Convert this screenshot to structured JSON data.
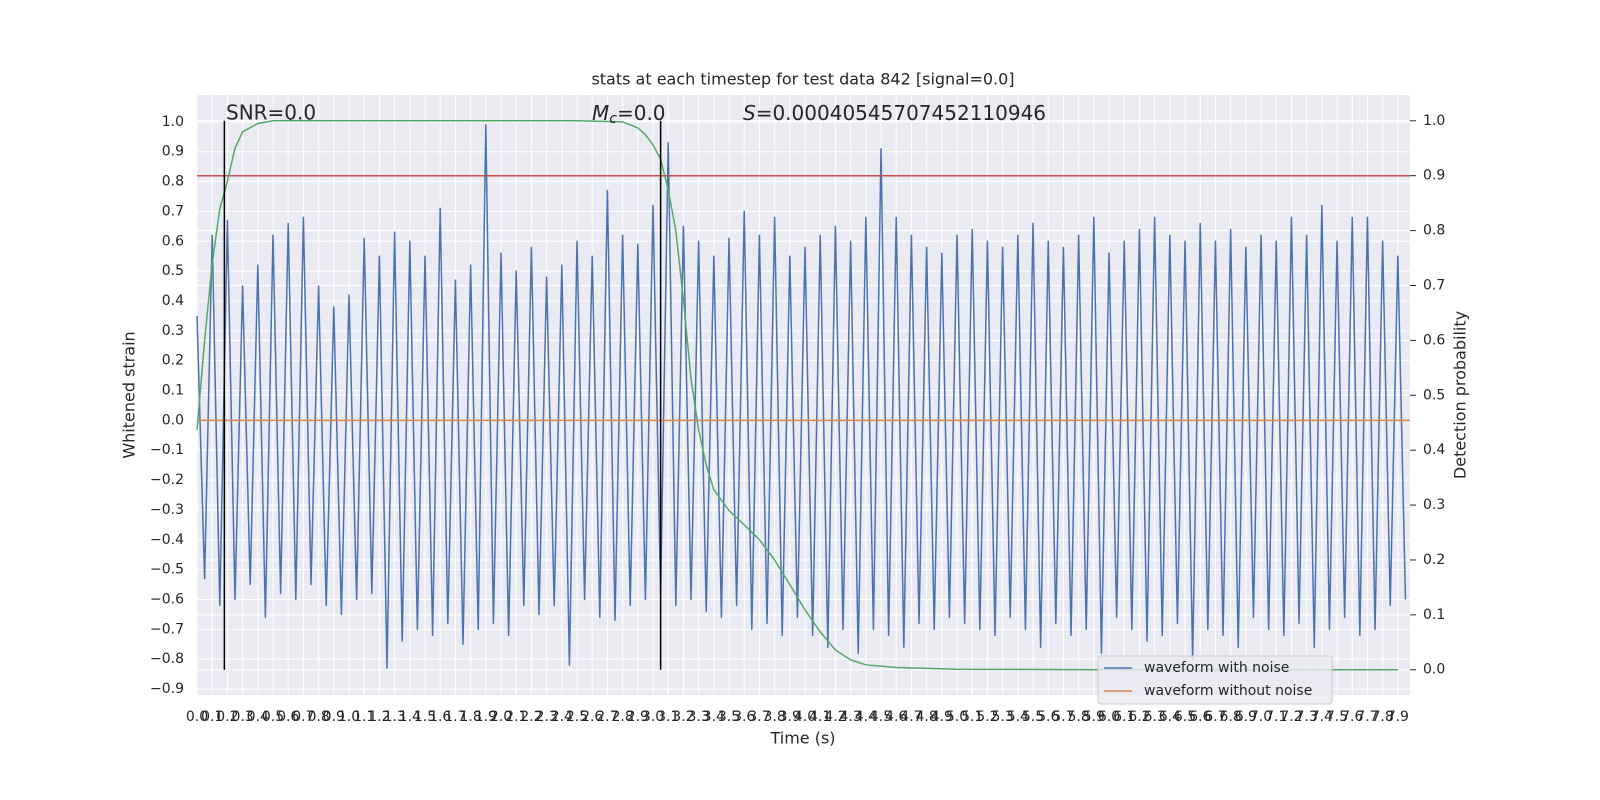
{
  "chart_data": {
    "type": "line",
    "title": "stats at each timestep for test data 842 [signal=0.0]",
    "xlabel": "Time (s)",
    "ylabel": "Whitened strain",
    "y2label": "Detection probability",
    "annotations": [
      "SNR=0.0",
      "M_c=0.0",
      "S=0.00040545707452110946"
    ],
    "xlim": [
      0,
      7.98
    ],
    "ylim": [
      -0.92,
      1.09
    ],
    "y2lim": [
      -0.046,
      1.047
    ],
    "grid": true,
    "legend": "lower right",
    "xticks": [
      {
        "value": 0,
        "label": "0.0"
      },
      0.1,
      0.2,
      0.3,
      0.4,
      0.5,
      0.6,
      0.7,
      0.8,
      0.9,
      {
        "value": 1,
        "label": "1.0"
      },
      1.1,
      1.2,
      1.3,
      1.4,
      1.5,
      1.6,
      1.7,
      1.8,
      1.9,
      {
        "value": 2,
        "label": "2.0"
      },
      2.1,
      2.2,
      2.3,
      2.4,
      2.5,
      2.6,
      2.7,
      2.8,
      2.9,
      {
        "value": 3,
        "label": "3.0"
      },
      3.1,
      3.2,
      3.3,
      3.4,
      3.5,
      3.6,
      3.7,
      3.8,
      3.9,
      {
        "value": 4,
        "label": "4.0"
      },
      4.1,
      4.2,
      4.3,
      4.4,
      4.5,
      4.6,
      4.7,
      4.8,
      4.9,
      {
        "value": 5,
        "label": "5.0"
      },
      5.1,
      5.2,
      5.3,
      5.4,
      5.5,
      5.6,
      5.7,
      5.8,
      5.9,
      {
        "value": 6,
        "label": "6.0"
      },
      6.1,
      6.2,
      6.3,
      6.4,
      6.5,
      6.6,
      6.7,
      6.8,
      6.9,
      {
        "value": 7,
        "label": "7.0"
      },
      7.1,
      7.2,
      7.3,
      7.4,
      7.5,
      7.6,
      7.7,
      7.8,
      7.9
    ],
    "yticks": [
      {
        "value": -0.9,
        "label": "−0.9"
      },
      {
        "value": -0.8,
        "label": "−0.8"
      },
      {
        "value": -0.7,
        "label": "−0.7"
      },
      {
        "value": -0.6,
        "label": "−0.6"
      },
      {
        "value": -0.5,
        "label": "−0.5"
      },
      {
        "value": -0.4,
        "label": "−0.4"
      },
      {
        "value": -0.3,
        "label": "−0.3"
      },
      {
        "value": -0.2,
        "label": "−0.2"
      },
      {
        "value": -0.1,
        "label": "−0.1"
      },
      {
        "value": 0,
        "label": "0.0"
      },
      0.1,
      0.2,
      0.3,
      0.4,
      0.5,
      0.6,
      0.7,
      0.8,
      0.9,
      {
        "value": 1,
        "label": "1.0"
      }
    ],
    "y2ticks": [
      {
        "value": 0,
        "label": "0.0"
      },
      0.1,
      0.2,
      0.3,
      0.4,
      0.5,
      0.6,
      0.7,
      0.8,
      0.9,
      {
        "value": 1,
        "label": "1.0"
      }
    ],
    "series": [
      {
        "name": "waveform with noise",
        "color": "#4c72b0",
        "x": [
          0,
          0.05,
          0.1,
          0.15,
          0.2,
          0.25,
          0.3,
          0.35,
          0.4,
          0.45,
          0.5,
          0.55,
          0.6,
          0.65,
          0.7,
          0.75,
          0.8,
          0.85,
          0.9,
          0.95,
          1,
          1.05,
          1.1,
          1.15,
          1.2,
          1.25,
          1.3,
          1.35,
          1.4,
          1.45,
          1.5,
          1.55,
          1.6,
          1.65,
          1.7,
          1.75,
          1.8,
          1.85,
          1.9,
          1.95,
          2,
          2.05,
          2.1,
          2.15,
          2.2,
          2.25,
          2.3,
          2.35,
          2.4,
          2.45,
          2.5,
          2.55,
          2.6,
          2.65,
          2.7,
          2.75,
          2.8,
          2.85,
          2.9,
          2.95,
          3,
          3.05,
          3.1,
          3.15,
          3.2,
          3.25,
          3.3,
          3.35,
          3.4,
          3.45,
          3.5,
          3.55,
          3.6,
          3.65,
          3.7,
          3.75,
          3.8,
          3.85,
          3.9,
          3.95,
          4,
          4.05,
          4.1,
          4.15,
          4.2,
          4.25,
          4.3,
          4.35,
          4.4,
          4.45,
          4.5,
          4.55,
          4.6,
          4.65,
          4.7,
          4.75,
          4.8,
          4.85,
          4.9,
          4.95,
          5,
          5.05,
          5.1,
          5.15,
          5.2,
          5.25,
          5.3,
          5.35,
          5.4,
          5.45,
          5.5,
          5.55,
          5.6,
          5.65,
          5.7,
          5.75,
          5.8,
          5.85,
          5.9,
          5.95,
          6,
          6.05,
          6.1,
          6.15,
          6.2,
          6.25,
          6.3,
          6.35,
          6.4,
          6.45,
          6.5,
          6.55,
          6.6,
          6.65,
          6.7,
          6.75,
          6.8,
          6.85,
          6.9,
          6.95,
          7,
          7.05,
          7.1,
          7.15,
          7.2,
          7.25,
          7.3,
          7.35,
          7.4,
          7.45,
          7.5,
          7.55,
          7.6,
          7.65,
          7.7,
          7.75,
          7.8,
          7.85,
          7.9,
          7.95
        ],
        "values": [
          0.35,
          -0.53,
          0.62,
          -0.62,
          0.67,
          -0.6,
          0.45,
          -0.55,
          0.52,
          -0.66,
          0.62,
          -0.58,
          0.66,
          -0.6,
          0.68,
          -0.55,
          0.45,
          -0.62,
          0.38,
          -0.65,
          0.42,
          -0.6,
          0.61,
          -0.58,
          0.55,
          -0.83,
          0.63,
          -0.74,
          0.6,
          -0.7,
          0.55,
          -0.72,
          0.71,
          -0.68,
          0.47,
          -0.75,
          0.52,
          -0.7,
          0.99,
          -0.68,
          0.56,
          -0.72,
          0.5,
          -0.62,
          0.58,
          -0.65,
          0.48,
          -0.62,
          0.52,
          -0.82,
          0.6,
          -0.6,
          0.55,
          -0.66,
          0.77,
          -0.67,
          0.62,
          -0.62,
          0.59,
          -0.6,
          0.72,
          -0.58,
          0.93,
          -0.62,
          0.65,
          -0.6,
          0.6,
          -0.64,
          0.55,
          -0.66,
          0.61,
          -0.62,
          0.7,
          -0.7,
          0.62,
          -0.68,
          0.68,
          -0.72,
          0.55,
          -0.66,
          0.58,
          -0.72,
          0.62,
          -0.76,
          0.65,
          -0.7,
          0.6,
          -0.78,
          0.68,
          -0.7,
          0.91,
          -0.72,
          0.68,
          -0.76,
          0.62,
          -0.68,
          0.58,
          -0.7,
          0.56,
          -0.66,
          0.62,
          -0.68,
          0.64,
          -0.7,
          0.6,
          -0.72,
          0.58,
          -0.66,
          0.62,
          -0.7,
          0.66,
          -0.76,
          0.6,
          -0.68,
          0.58,
          -0.72,
          0.62,
          -0.7,
          0.68,
          -0.78,
          0.56,
          -0.66,
          0.6,
          -0.7,
          0.64,
          -0.74,
          0.68,
          -0.72,
          0.62,
          -0.68,
          0.6,
          -0.8,
          0.66,
          -0.7,
          0.6,
          -0.72,
          0.64,
          -0.76,
          0.58,
          -0.66,
          0.62,
          -0.7,
          0.6,
          -0.72,
          0.68,
          -0.68,
          0.62,
          -0.76,
          0.72,
          -0.7,
          0.6,
          -0.66,
          0.68,
          -0.72,
          0.68,
          -0.7,
          0.6,
          -0.62,
          0.55,
          -0.6
        ]
      },
      {
        "name": "waveform without noise",
        "color": "#dd8452",
        "x": [
          0,
          7.98
        ],
        "values": [
          0,
          0
        ]
      }
    ],
    "probability_curve": {
      "color": "#55a868",
      "axis": "y2",
      "x": [
        0,
        0.05,
        0.1,
        0.15,
        0.2,
        0.25,
        0.3,
        0.4,
        0.5,
        1.0,
        2.0,
        2.5,
        2.8,
        2.9,
        2.95,
        3.0,
        3.05,
        3.1,
        3.15,
        3.2,
        3.25,
        3.3,
        3.35,
        3.4,
        3.5,
        3.6,
        3.7,
        3.8,
        3.9,
        4.0,
        4.1,
        4.2,
        4.3,
        4.4,
        4.6,
        5.0,
        6.0,
        7.0,
        7.9
      ],
      "values": [
        0.437,
        0.6,
        0.74,
        0.84,
        0.89,
        0.95,
        0.98,
        0.995,
        1.0,
        1.0,
        1.0,
        1.0,
        0.998,
        0.987,
        0.975,
        0.956,
        0.93,
        0.874,
        0.8,
        0.674,
        0.53,
        0.437,
        0.373,
        0.328,
        0.29,
        0.264,
        0.237,
        0.2,
        0.155,
        0.109,
        0.069,
        0.036,
        0.018,
        0.009,
        0.004,
        0.001,
        0,
        0,
        0
      ]
    },
    "threshold": {
      "value": 0.9,
      "axis": "y2",
      "color": "#c44e52"
    },
    "vlines": {
      "x": [
        0.18,
        3.05
      ],
      "ymin": 0,
      "ymax": 1,
      "axis": "y2",
      "color": "#000000"
    }
  }
}
